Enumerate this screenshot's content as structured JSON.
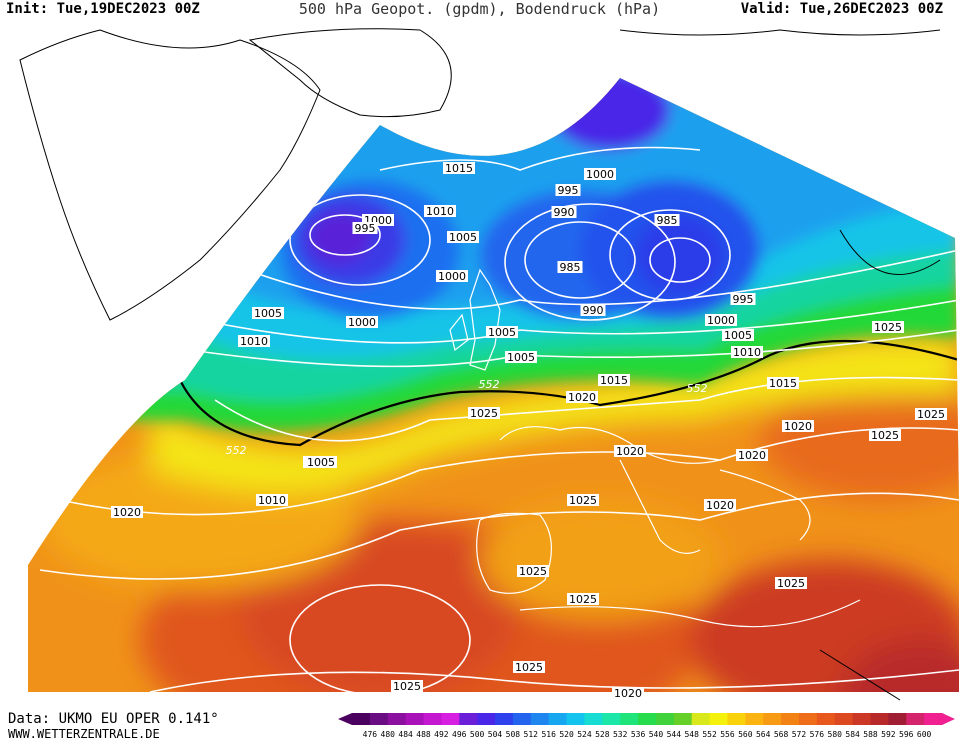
{
  "header": {
    "init": "Init: Tue,19DEC2023 00Z",
    "title": "500 hPa Geopot. (gpdm), Bodendruck (hPa)",
    "valid": "Valid: Tue,26DEC2023 00Z"
  },
  "footer": {
    "data": "Data: UKMO EU OPER 0.141°",
    "website": "WWW.WETTERZENTRALE.DE"
  },
  "colors": {
    "boundary_552": "#000000",
    "isobars": "#ffffff",
    "label_bg": "#ffffff"
  },
  "scale": {
    "labels": [
      "476",
      "480",
      "484",
      "488",
      "492",
      "496",
      "500",
      "504",
      "508",
      "512",
      "516",
      "520",
      "524",
      "528",
      "532",
      "536",
      "540",
      "544",
      "548",
      "552",
      "556",
      "560",
      "564",
      "568",
      "572",
      "576",
      "580",
      "584",
      "588",
      "592",
      "596",
      "600"
    ],
    "colors": [
      "#4b0060",
      "#6a0d83",
      "#8b109f",
      "#a812b8",
      "#c318d0",
      "#d61fe0",
      "#6b1fd8",
      "#4a26e8",
      "#2f41ec",
      "#2463ee",
      "#1f86f0",
      "#17a7f0",
      "#13c4ee",
      "#17dcd4",
      "#1ce6a8",
      "#1fe47a",
      "#27dc4c",
      "#3fd23a",
      "#66d028",
      "#d8e81a",
      "#f4f20c",
      "#f9d20c",
      "#fab310",
      "#f79a14",
      "#f38214",
      "#ef6c18",
      "#e8581c",
      "#dc4820",
      "#cc3826",
      "#b82a2a",
      "#a01e34",
      "#d4246c",
      "#f02090"
    ]
  },
  "isobar_labels": [
    {
      "text": "1015"
    },
    {
      "text": "1010"
    },
    {
      "text": "1000"
    },
    {
      "text": "995"
    },
    {
      "text": "1005"
    },
    {
      "text": "1000"
    },
    {
      "text": "1005"
    },
    {
      "text": "1000"
    },
    {
      "text": "1010"
    },
    {
      "text": "1005"
    },
    {
      "text": "995"
    },
    {
      "text": "1000"
    },
    {
      "text": "990"
    },
    {
      "text": "985"
    },
    {
      "text": "990"
    },
    {
      "text": "985"
    },
    {
      "text": "995"
    },
    {
      "text": "1000"
    },
    {
      "text": "1005"
    },
    {
      "text": "1010"
    },
    {
      "text": "1025"
    },
    {
      "text": "1005"
    },
    {
      "text": "1010"
    },
    {
      "text": "1015"
    },
    {
      "text": "1020"
    },
    {
      "text": "1025"
    },
    {
      "text": "1015"
    },
    {
      "text": "1020"
    },
    {
      "text": "1025"
    },
    {
      "text": "552"
    },
    {
      "text": "552"
    },
    {
      "text": "552"
    },
    {
      "text": "1005"
    },
    {
      "text": "1010"
    },
    {
      "text": "1020"
    },
    {
      "text": "1020"
    },
    {
      "text": "1020"
    },
    {
      "text": "1015"
    },
    {
      "text": "1025"
    },
    {
      "text": "1020"
    },
    {
      "text": "1025"
    },
    {
      "text": "1025"
    },
    {
      "text": "1025"
    },
    {
      "text": "1025"
    },
    {
      "text": "1025"
    },
    {
      "text": "1025"
    },
    {
      "text": "1020"
    }
  ]
}
